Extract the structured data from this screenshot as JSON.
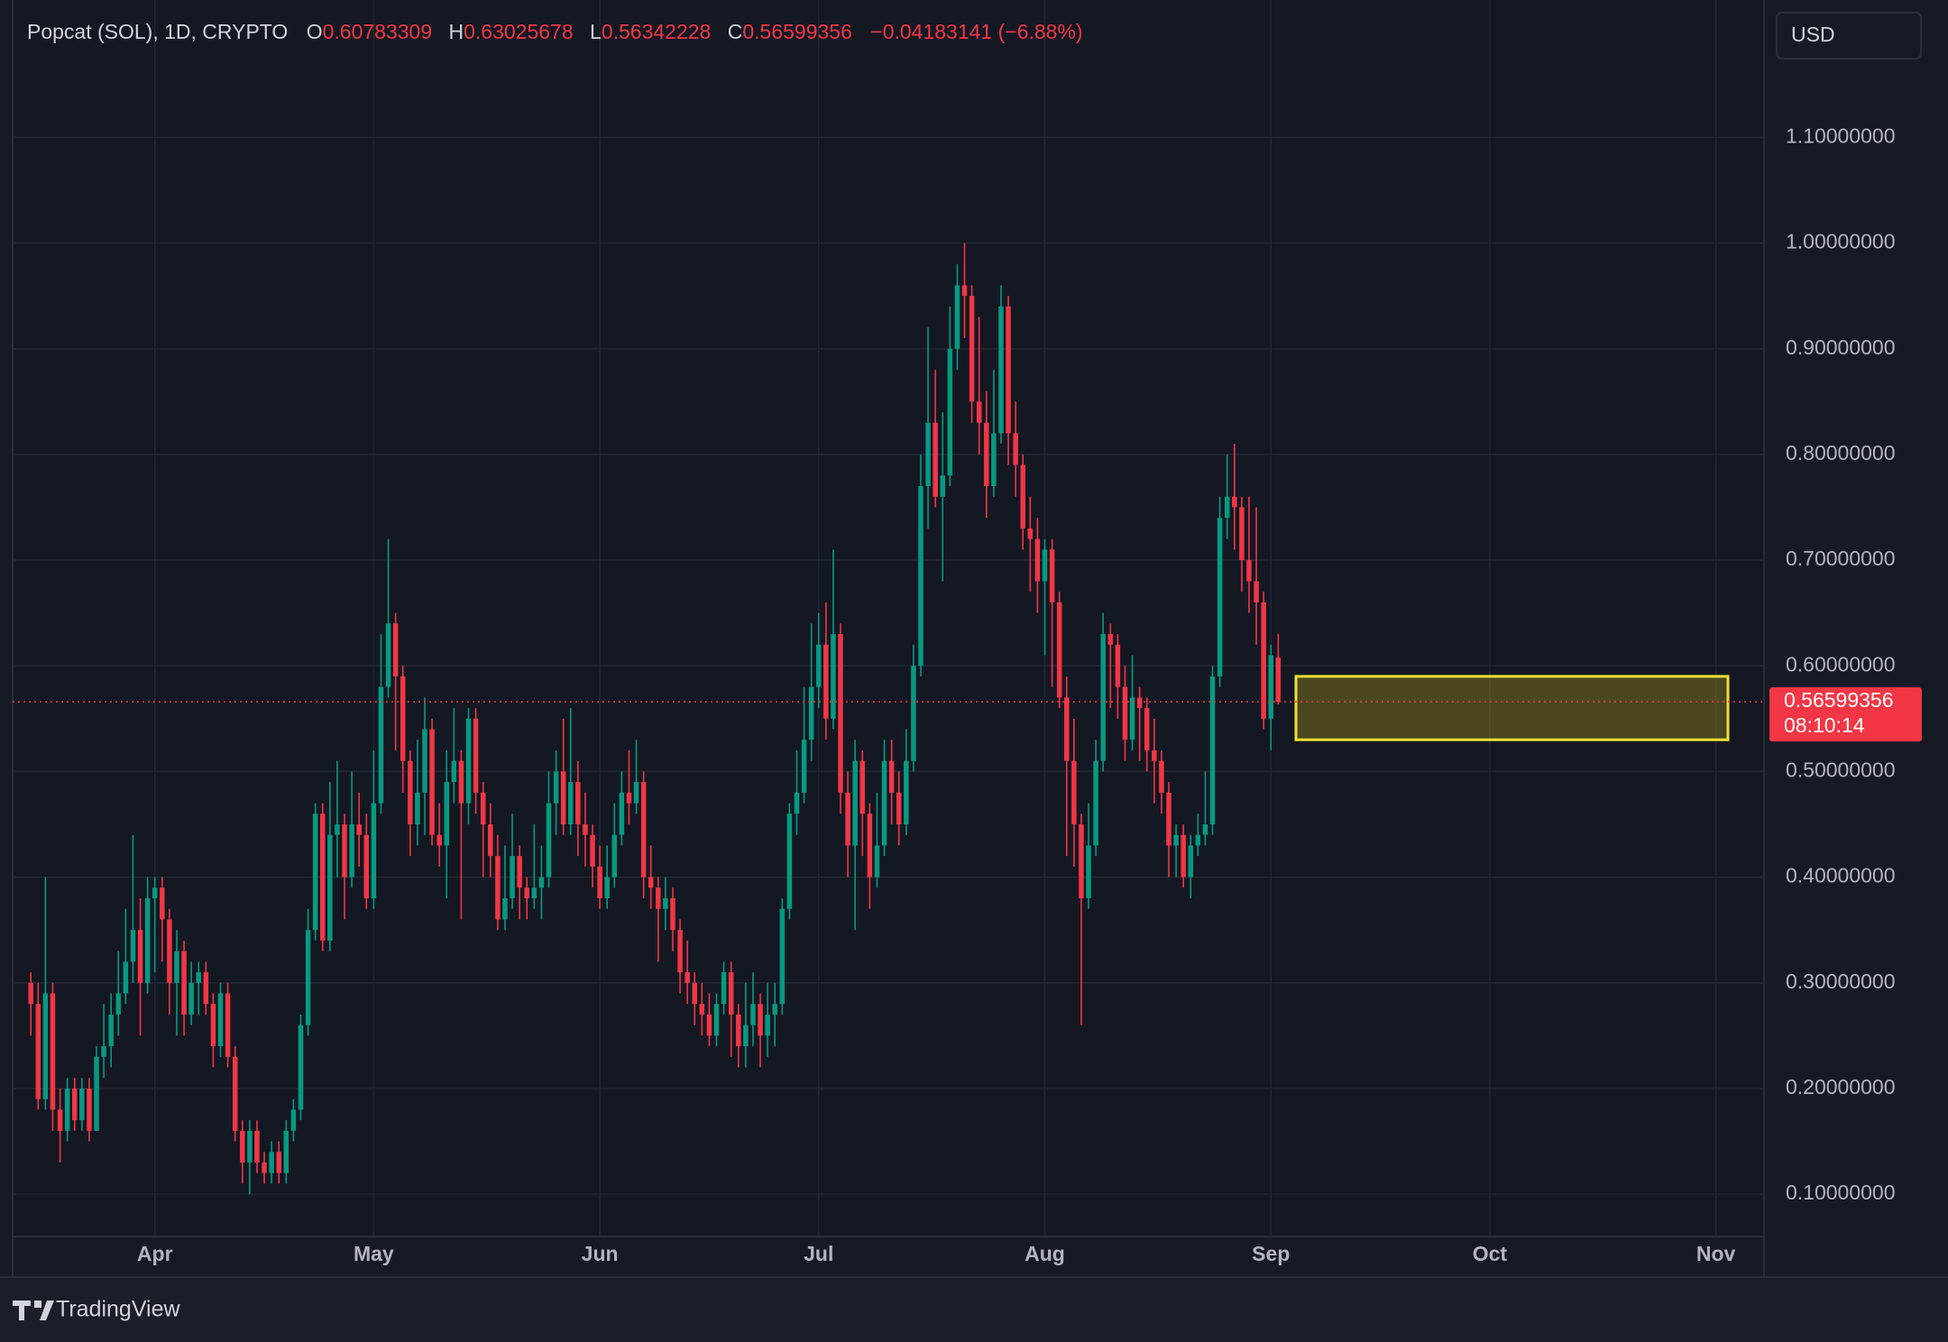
{
  "chart_data": {
    "type": "candlestick",
    "title": "Popcat (SOL), 1D, CRYPTO",
    "ohlc_labels": [
      "O",
      "H",
      "L",
      "C"
    ],
    "change": "−0.04183141 (−6.88%)",
    "currency": "USD",
    "countdown": "08:10:14",
    "brand": "TradingView",
    "up_color": "#089981",
    "down_color": "#f23645",
    "grid": true,
    "xlim": [
      -2.5,
      237.6
    ],
    "xticks": [
      {
        "value": 17,
        "label": "Apr"
      },
      {
        "value": 47,
        "label": "May"
      },
      {
        "value": 78,
        "label": "Jun"
      },
      {
        "value": 108,
        "label": "Jul"
      },
      {
        "value": 139,
        "label": "Aug"
      },
      {
        "value": 170,
        "label": "Sep"
      },
      {
        "value": 200,
        "label": "Oct"
      },
      {
        "value": 231,
        "label": "Nov"
      }
    ],
    "ylim": [
      0.06,
      1.23
    ],
    "yticks": [
      {
        "value": 0.1,
        "label": "0.10000000"
      },
      {
        "value": 0.2,
        "label": "0.20000000"
      },
      {
        "value": 0.3,
        "label": "0.30000000"
      },
      {
        "value": 0.4,
        "label": "0.40000000"
      },
      {
        "value": 0.5,
        "label": "0.50000000"
      },
      {
        "value": 0.6,
        "label": "0.60000000"
      },
      {
        "value": 0.7,
        "label": "0.70000000"
      },
      {
        "value": 0.8,
        "label": "0.80000000"
      },
      {
        "value": 0.9,
        "label": "0.90000000"
      },
      {
        "value": 1.0,
        "label": "1.00000000"
      },
      {
        "value": 1.1,
        "label": "1.10000000"
      }
    ],
    "highlight_zone": {
      "from": 0.53,
      "to": 0.59
    },
    "open": [
      0.3,
      0.28,
      0.19,
      0.29,
      0.18,
      0.16,
      0.2,
      0.17,
      0.2,
      0.16,
      0.23,
      0.24,
      0.27,
      0.29,
      0.32,
      0.35,
      0.3,
      0.38,
      0.39,
      0.36,
      0.3,
      0.33,
      0.27,
      0.3,
      0.31,
      0.28,
      0.24,
      0.29,
      0.23,
      0.16,
      0.13,
      0.16,
      0.13,
      0.12,
      0.14,
      0.12,
      0.16,
      0.18,
      0.26,
      0.35,
      0.46,
      0.34,
      0.44,
      0.45,
      0.4,
      0.45,
      0.44,
      0.38,
      0.47,
      0.58,
      0.64,
      0.59,
      0.51,
      0.45,
      0.48,
      0.54,
      0.44,
      0.43,
      0.49,
      0.51,
      0.47,
      0.55,
      0.48,
      0.45,
      0.42,
      0.36,
      0.38,
      0.42,
      0.39,
      0.38,
      0.39,
      0.4,
      0.47,
      0.5,
      0.45,
      0.49,
      0.45,
      0.44,
      0.41,
      0.38,
      0.4,
      0.44,
      0.48,
      0.47,
      0.49,
      0.4,
      0.39,
      0.37,
      0.38,
      0.35,
      0.31,
      0.3,
      0.28,
      0.27,
      0.25,
      0.28,
      0.31,
      0.27,
      0.24,
      0.26,
      0.28,
      0.25,
      0.27,
      0.28,
      0.37,
      0.46,
      0.48,
      0.53,
      0.58,
      0.62,
      0.55,
      0.63,
      0.48,
      0.43,
      0.51,
      0.46,
      0.4,
      0.43,
      0.51,
      0.48,
      0.45,
      0.51,
      0.6,
      0.77,
      0.83,
      0.76,
      0.78,
      0.9,
      0.96,
      0.95,
      0.85,
      0.83,
      0.77,
      0.82,
      0.94,
      0.82,
      0.79,
      0.73,
      0.72,
      0.68,
      0.71,
      0.66,
      0.57,
      0.51,
      0.45,
      0.38,
      0.43,
      0.51,
      0.63,
      0.62,
      0.58,
      0.53,
      0.57,
      0.56,
      0.52,
      0.51,
      0.48,
      0.43,
      0.44,
      0.4,
      0.43,
      0.44,
      0.45,
      0.59,
      0.74,
      0.76,
      0.75,
      0.7,
      0.68,
      0.66,
      0.55,
      0.60783309
    ],
    "high": [
      0.31,
      0.3,
      0.4,
      0.3,
      0.2,
      0.21,
      0.21,
      0.21,
      0.21,
      0.24,
      0.28,
      0.29,
      0.33,
      0.37,
      0.44,
      0.38,
      0.4,
      0.4,
      0.4,
      0.37,
      0.35,
      0.34,
      0.32,
      0.32,
      0.32,
      0.29,
      0.3,
      0.3,
      0.24,
      0.17,
      0.17,
      0.17,
      0.14,
      0.15,
      0.15,
      0.17,
      0.19,
      0.27,
      0.37,
      0.47,
      0.47,
      0.49,
      0.51,
      0.46,
      0.5,
      0.48,
      0.46,
      0.52,
      0.63,
      0.72,
      0.65,
      0.6,
      0.52,
      0.53,
      0.57,
      0.55,
      0.47,
      0.52,
      0.56,
      0.52,
      0.56,
      0.56,
      0.49,
      0.47,
      0.44,
      0.43,
      0.46,
      0.43,
      0.4,
      0.45,
      0.43,
      0.5,
      0.52,
      0.55,
      0.56,
      0.51,
      0.48,
      0.45,
      0.43,
      0.43,
      0.47,
      0.5,
      0.52,
      0.53,
      0.5,
      0.43,
      0.4,
      0.4,
      0.39,
      0.36,
      0.34,
      0.31,
      0.3,
      0.29,
      0.29,
      0.32,
      0.32,
      0.28,
      0.3,
      0.31,
      0.29,
      0.3,
      0.3,
      0.38,
      0.47,
      0.52,
      0.58,
      0.64,
      0.65,
      0.66,
      0.71,
      0.64,
      0.5,
      0.53,
      0.52,
      0.47,
      0.48,
      0.53,
      0.53,
      0.5,
      0.54,
      0.62,
      0.8,
      0.92,
      0.88,
      0.84,
      0.94,
      0.98,
      1.0,
      0.96,
      0.93,
      0.86,
      0.88,
      0.96,
      0.95,
      0.85,
      0.8,
      0.76,
      0.74,
      0.72,
      0.72,
      0.67,
      0.59,
      0.55,
      0.46,
      0.47,
      0.53,
      0.65,
      0.64,
      0.63,
      0.6,
      0.61,
      0.58,
      0.57,
      0.55,
      0.52,
      0.49,
      0.45,
      0.45,
      0.44,
      0.46,
      0.5,
      0.6,
      0.76,
      0.8,
      0.81,
      0.76,
      0.76,
      0.75,
      0.67,
      0.62,
      0.63025678
    ],
    "low": [
      0.25,
      0.18,
      0.18,
      0.16,
      0.13,
      0.15,
      0.16,
      0.16,
      0.15,
      0.16,
      0.21,
      0.22,
      0.25,
      0.28,
      0.3,
      0.25,
      0.29,
      0.31,
      0.32,
      0.27,
      0.25,
      0.25,
      0.26,
      0.27,
      0.27,
      0.22,
      0.23,
      0.22,
      0.15,
      0.11,
      0.1,
      0.12,
      0.11,
      0.11,
      0.11,
      0.11,
      0.15,
      0.17,
      0.25,
      0.34,
      0.33,
      0.33,
      0.4,
      0.36,
      0.39,
      0.41,
      0.37,
      0.37,
      0.46,
      0.57,
      0.52,
      0.48,
      0.42,
      0.43,
      0.44,
      0.43,
      0.41,
      0.38,
      0.47,
      0.36,
      0.45,
      0.46,
      0.4,
      0.4,
      0.35,
      0.35,
      0.37,
      0.36,
      0.36,
      0.37,
      0.36,
      0.39,
      0.44,
      0.44,
      0.44,
      0.42,
      0.41,
      0.39,
      0.37,
      0.37,
      0.39,
      0.43,
      0.45,
      0.46,
      0.38,
      0.37,
      0.32,
      0.35,
      0.33,
      0.29,
      0.28,
      0.26,
      0.25,
      0.24,
      0.24,
      0.27,
      0.23,
      0.22,
      0.22,
      0.24,
      0.22,
      0.23,
      0.24,
      0.27,
      0.36,
      0.44,
      0.47,
      0.51,
      0.56,
      0.53,
      0.54,
      0.46,
      0.4,
      0.35,
      0.42,
      0.37,
      0.39,
      0.42,
      0.45,
      0.43,
      0.44,
      0.5,
      0.59,
      0.73,
      0.75,
      0.68,
      0.77,
      0.88,
      0.91,
      0.83,
      0.8,
      0.74,
      0.76,
      0.81,
      0.79,
      0.76,
      0.71,
      0.67,
      0.65,
      0.61,
      0.58,
      0.56,
      0.42,
      0.41,
      0.26,
      0.37,
      0.42,
      0.5,
      0.56,
      0.55,
      0.51,
      0.52,
      0.51,
      0.5,
      0.47,
      0.46,
      0.4,
      0.4,
      0.39,
      0.38,
      0.42,
      0.43,
      0.44,
      0.58,
      0.72,
      0.71,
      0.67,
      0.65,
      0.62,
      0.54,
      0.52,
      0.56342228
    ],
    "close": [
      0.28,
      0.19,
      0.29,
      0.18,
      0.16,
      0.2,
      0.17,
      0.2,
      0.16,
      0.23,
      0.24,
      0.27,
      0.29,
      0.32,
      0.35,
      0.3,
      0.38,
      0.39,
      0.36,
      0.3,
      0.33,
      0.27,
      0.3,
      0.31,
      0.28,
      0.24,
      0.29,
      0.23,
      0.16,
      0.13,
      0.16,
      0.13,
      0.12,
      0.14,
      0.12,
      0.16,
      0.18,
      0.26,
      0.35,
      0.46,
      0.34,
      0.44,
      0.45,
      0.4,
      0.45,
      0.44,
      0.38,
      0.47,
      0.58,
      0.64,
      0.59,
      0.51,
      0.45,
      0.48,
      0.54,
      0.44,
      0.43,
      0.49,
      0.51,
      0.47,
      0.55,
      0.48,
      0.45,
      0.42,
      0.36,
      0.38,
      0.42,
      0.39,
      0.38,
      0.39,
      0.4,
      0.47,
      0.5,
      0.45,
      0.49,
      0.45,
      0.44,
      0.41,
      0.38,
      0.4,
      0.44,
      0.48,
      0.47,
      0.49,
      0.4,
      0.39,
      0.37,
      0.38,
      0.35,
      0.31,
      0.3,
      0.28,
      0.27,
      0.25,
      0.28,
      0.31,
      0.27,
      0.24,
      0.26,
      0.28,
      0.25,
      0.27,
      0.28,
      0.37,
      0.46,
      0.48,
      0.53,
      0.58,
      0.62,
      0.55,
      0.63,
      0.48,
      0.43,
      0.51,
      0.46,
      0.4,
      0.43,
      0.51,
      0.48,
      0.45,
      0.51,
      0.6,
      0.77,
      0.83,
      0.76,
      0.78,
      0.9,
      0.96,
      0.95,
      0.85,
      0.83,
      0.77,
      0.82,
      0.94,
      0.82,
      0.79,
      0.73,
      0.72,
      0.68,
      0.71,
      0.66,
      0.57,
      0.51,
      0.45,
      0.38,
      0.43,
      0.51,
      0.63,
      0.62,
      0.58,
      0.53,
      0.57,
      0.56,
      0.52,
      0.51,
      0.48,
      0.43,
      0.44,
      0.4,
      0.43,
      0.44,
      0.45,
      0.59,
      0.74,
      0.76,
      0.75,
      0.7,
      0.68,
      0.66,
      0.55,
      0.61,
      0.56599356
    ]
  }
}
